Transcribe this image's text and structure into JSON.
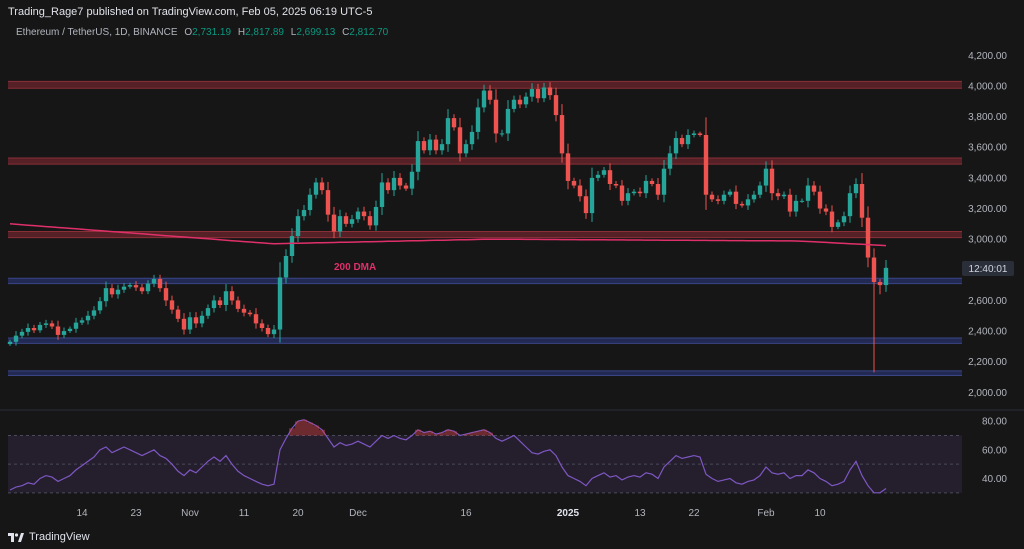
{
  "header": {
    "publisher": "Trading_Rage7 published on TradingView.com, Feb 05, 2025 06:19 UTC-5"
  },
  "symbol": {
    "name": "Ethereum / TetherUS, 1D, BINANCE",
    "o_label": "O",
    "o": "2,731.19",
    "h_label": "H",
    "h": "2,817.89",
    "l_label": "L",
    "l": "2,699.13",
    "c_label": "C",
    "c": "2,812.70"
  },
  "footer": {
    "brand": "TradingView"
  },
  "colors": {
    "bg": "#161616",
    "up": "#26a69a",
    "down": "#ef5350",
    "resistance_zone": "#5c2128",
    "support_zone": "#232c5b",
    "dma": "#e0306a",
    "rsi_line": "#7e57c2",
    "rsi_band": "#2a2236"
  },
  "chart_data": [
    {
      "type": "candlestick",
      "title": "Ethereum / TetherUS, 1D, BINANCE",
      "x_tick_labels": [
        "14",
        "23",
        "Nov",
        "11",
        "20",
        "Dec",
        "16",
        "2025",
        "13",
        "22",
        "Feb",
        "10"
      ],
      "y_tick_labels": [
        "4,200.00",
        "4,000.00",
        "3,800.00",
        "3,600.00",
        "3,400.00",
        "3,200.00",
        "3,000.00",
        "2,800.00",
        "2,600.00",
        "2,400.00",
        "2,200.00",
        "2,000.00"
      ],
      "ylim": [
        1950,
        4300
      ],
      "countdown_label": "12:40:01",
      "dma_label": "200 DMA",
      "zones": [
        {
          "kind": "resistance",
          "from": 3985,
          "to": 4030
        },
        {
          "kind": "resistance",
          "from": 3490,
          "to": 3530
        },
        {
          "kind": "resistance",
          "from": 3010,
          "to": 3050
        },
        {
          "kind": "support",
          "from": 2710,
          "to": 2745
        },
        {
          "kind": "support",
          "from": 2320,
          "to": 2355
        },
        {
          "kind": "support",
          "from": 2110,
          "to": 2140
        }
      ],
      "close_series": [
        2330,
        2370,
        2395,
        2420,
        2405,
        2440,
        2450,
        2430,
        2375,
        2400,
        2415,
        2455,
        2470,
        2500,
        2535,
        2595,
        2680,
        2640,
        2670,
        2690,
        2700,
        2685,
        2660,
        2710,
        2740,
        2680,
        2600,
        2540,
        2480,
        2410,
        2490,
        2450,
        2500,
        2550,
        2600,
        2570,
        2660,
        2600,
        2545,
        2520,
        2510,
        2450,
        2420,
        2380,
        2410,
        2750,
        2890,
        3020,
        3150,
        3190,
        3290,
        3370,
        3320,
        3160,
        3050,
        3150,
        3100,
        3130,
        3180,
        3150,
        3090,
        3210,
        3370,
        3320,
        3400,
        3350,
        3330,
        3440,
        3640,
        3580,
        3650,
        3580,
        3620,
        3790,
        3730,
        3560,
        3620,
        3700,
        3860,
        3970,
        3910,
        3690,
        3690,
        3850,
        3910,
        3880,
        3930,
        3980,
        3920,
        3990,
        3940,
        3810,
        3560,
        3380,
        3350,
        3280,
        3170,
        3400,
        3420,
        3450,
        3360,
        3350,
        3250,
        3300,
        3310,
        3300,
        3380,
        3360,
        3290,
        3460,
        3560,
        3660,
        3620,
        3680,
        3690,
        3680,
        3290,
        3260,
        3250,
        3290,
        3310,
        3230,
        3220,
        3260,
        3290,
        3350,
        3460,
        3300,
        3280,
        3290,
        3180,
        3250,
        3250,
        3350,
        3310,
        3200,
        3180,
        3080,
        3110,
        3150,
        3300,
        3360,
        3140,
        2880,
        2720,
        2700,
        2812.7
      ],
      "rsi": {
        "y_tick_labels": [
          "80.00",
          "60.00",
          "40.00"
        ],
        "ylim": [
          25,
          85
        ],
        "band": [
          30,
          70
        ],
        "values": [
          32,
          34,
          35,
          37,
          36,
          40,
          42,
          41,
          38,
          40,
          42,
          46,
          49,
          52,
          55,
          60,
          62,
          58,
          60,
          62,
          60,
          58,
          56,
          58,
          60,
          56,
          54,
          50,
          45,
          42,
          46,
          44,
          48,
          52,
          55,
          52,
          56,
          50,
          45,
          42,
          40,
          38,
          36,
          35,
          36,
          60,
          68,
          75,
          80,
          81,
          79,
          77,
          74,
          68,
          62,
          65,
          63,
          64,
          66,
          64,
          62,
          66,
          70,
          68,
          70,
          68,
          67,
          70,
          74,
          72,
          73,
          71,
          72,
          74,
          73,
          70,
          71,
          72,
          73,
          74,
          72,
          68,
          66,
          68,
          70,
          66,
          62,
          58,
          57,
          59,
          60,
          56,
          48,
          42,
          40,
          38,
          35,
          40,
          42,
          44,
          41,
          42,
          39,
          41,
          42,
          41,
          44,
          43,
          40,
          48,
          52,
          56,
          54,
          55,
          56,
          55,
          43,
          40,
          38,
          39,
          40,
          37,
          36,
          38,
          39,
          42,
          48,
          44,
          43,
          44,
          40,
          42,
          42,
          46,
          44,
          40,
          38,
          35,
          36,
          38,
          46,
          52,
          42,
          35,
          30,
          30,
          33
        ]
      }
    }
  ]
}
